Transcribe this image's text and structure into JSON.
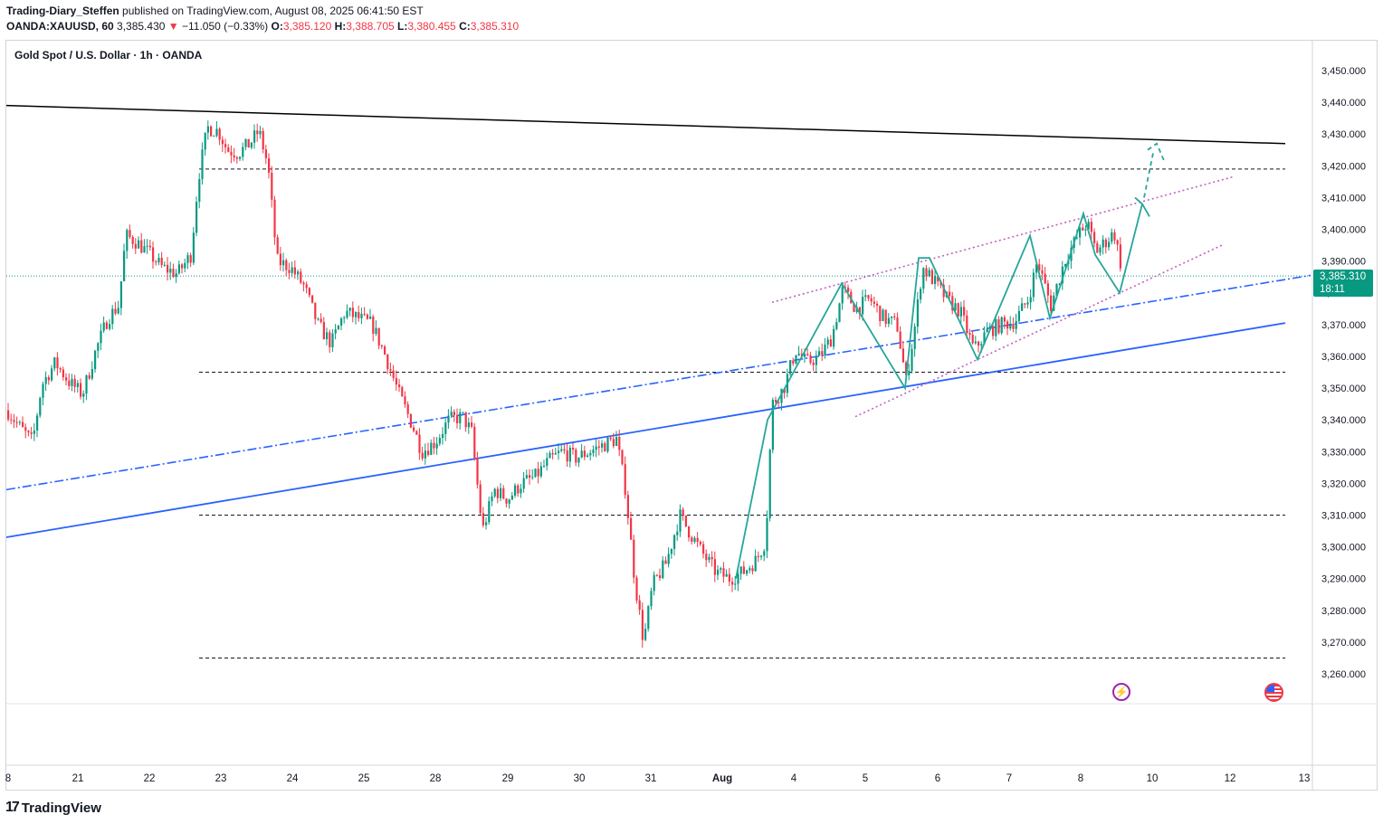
{
  "header": {
    "author": "Trading-Diary_Steffen",
    "published_text": "published on TradingView.com, August 08, 2025 06:41:50 EST",
    "symbol": "OANDA:XAUUSD, 60",
    "last": "3,385.430",
    "change_arrow": "▼",
    "change": "−11.050 (−0.33%)",
    "o_label": "O:",
    "o_value": "3,385.120",
    "h_label": "H:",
    "h_value": "3,388.705",
    "l_label": "L:",
    "l_value": "3,380.455",
    "c_label": "C:",
    "c_value": "3,385.310"
  },
  "chart_title": "Gold Spot / U.S. Dollar · 1h · OANDA",
  "price_tag": {
    "price": "3,385.310",
    "countdown": "18:11"
  },
  "branding": {
    "logo_text": "TradingView",
    "logo_mark": "17"
  },
  "icons": {
    "event": "bolt-icon",
    "flag": "us-flag-icon"
  },
  "colors": {
    "up": "#089981",
    "down": "#f23645",
    "accent_blue": "#2962ff",
    "teal_path": "#26a69a",
    "pink_channel": "#c060c0",
    "trendline": "#000000"
  },
  "chart_data": {
    "type": "candlestick",
    "title": "Gold Spot / U.S. Dollar · 1h · OANDA",
    "ylim": [
      3255,
      3455
    ],
    "y_ticks": [
      "3,260.000",
      "3,270.000",
      "3,280.000",
      "3,290.000",
      "3,300.000",
      "3,310.000",
      "3,320.000",
      "3,330.000",
      "3,340.000",
      "3,350.000",
      "3,360.000",
      "3,370.000",
      "3,380.000",
      "3,390.000",
      "3,400.000",
      "3,410.000",
      "3,420.000",
      "3,430.000",
      "3,440.000",
      "3,450.000"
    ],
    "x_ticks": [
      "8",
      "21",
      "22",
      "23",
      "24",
      "25",
      "28",
      "29",
      "30",
      "31",
      "Aug",
      "4",
      "5",
      "6",
      "7",
      "8",
      "10",
      "12",
      "13"
    ],
    "last_price": 3385.31,
    "horizontal_levels": [
      3419,
      3355,
      3310,
      3265
    ],
    "price_path": [
      [
        7,
        3343
      ],
      [
        20,
        3338
      ],
      [
        35,
        3333
      ],
      [
        45,
        3351
      ],
      [
        60,
        3358
      ],
      [
        75,
        3352
      ],
      [
        90,
        3348
      ],
      [
        105,
        3362
      ],
      [
        118,
        3372
      ],
      [
        130,
        3376
      ],
      [
        138,
        3398
      ],
      [
        150,
        3396
      ],
      [
        165,
        3392
      ],
      [
        178,
        3388
      ],
      [
        195,
        3386
      ],
      [
        210,
        3392
      ],
      [
        218,
        3416
      ],
      [
        228,
        3432
      ],
      [
        240,
        3431
      ],
      [
        250,
        3425
      ],
      [
        262,
        3424
      ],
      [
        275,
        3427
      ],
      [
        285,
        3431
      ],
      [
        295,
        3420
      ],
      [
        305,
        3390
      ],
      [
        320,
        3388
      ],
      [
        335,
        3382
      ],
      [
        350,
        3370
      ],
      [
        365,
        3364
      ],
      [
        380,
        3374
      ],
      [
        395,
        3372
      ],
      [
        410,
        3370
      ],
      [
        425,
        3360
      ],
      [
        440,
        3348
      ],
      [
        455,
        3338
      ],
      [
        465,
        3330
      ],
      [
        480,
        3333
      ],
      [
        495,
        3340
      ],
      [
        510,
        3341
      ],
      [
        520,
        3336
      ],
      [
        532,
        3305
      ],
      [
        545,
        3318
      ],
      [
        560,
        3315
      ],
      [
        575,
        3320
      ],
      [
        590,
        3322
      ],
      [
        605,
        3327
      ],
      [
        620,
        3330
      ],
      [
        635,
        3328
      ],
      [
        650,
        3330
      ],
      [
        665,
        3332
      ],
      [
        680,
        3334
      ],
      [
        690,
        3318
      ],
      [
        700,
        3290
      ],
      [
        710,
        3270
      ],
      [
        720,
        3288
      ],
      [
        735,
        3295
      ],
      [
        750,
        3310
      ],
      [
        760,
        3305
      ],
      [
        775,
        3298
      ],
      [
        790,
        3292
      ],
      [
        805,
        3290
      ],
      [
        820,
        3292
      ],
      [
        835,
        3296
      ],
      [
        845,
        3302
      ],
      [
        852,
        3345
      ],
      [
        865,
        3350
      ],
      [
        878,
        3362
      ],
      [
        890,
        3358
      ],
      [
        905,
        3360
      ],
      [
        918,
        3366
      ],
      [
        930,
        3381
      ],
      [
        945,
        3375
      ],
      [
        960,
        3378
      ],
      [
        975,
        3372
      ],
      [
        990,
        3370
      ],
      [
        1000,
        3352
      ],
      [
        1010,
        3370
      ],
      [
        1018,
        3388
      ],
      [
        1030,
        3384
      ],
      [
        1045,
        3378
      ],
      [
        1060,
        3374
      ],
      [
        1075,
        3362
      ],
      [
        1090,
        3368
      ],
      [
        1105,
        3370
      ],
      [
        1120,
        3371
      ],
      [
        1135,
        3378
      ],
      [
        1145,
        3390
      ],
      [
        1160,
        3376
      ],
      [
        1175,
        3390
      ],
      [
        1190,
        3398
      ],
      [
        1200,
        3402
      ],
      [
        1210,
        3393
      ],
      [
        1220,
        3396
      ],
      [
        1230,
        3399
      ],
      [
        1240,
        3385
      ]
    ]
  }
}
